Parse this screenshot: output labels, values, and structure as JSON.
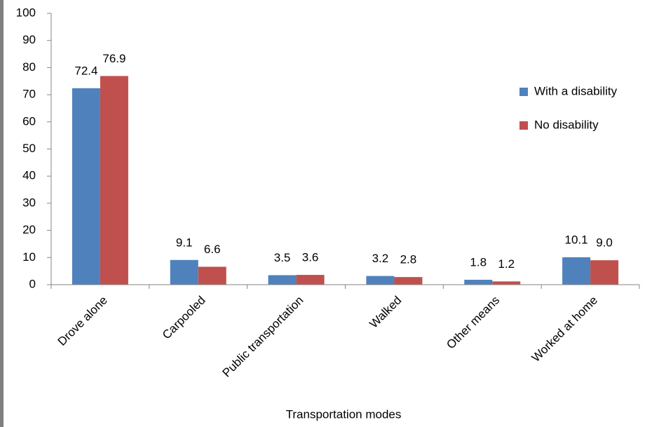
{
  "chart_data": {
    "type": "bar",
    "x_label": "Transportation modes",
    "categories": [
      "Drove alone",
      "Carpooled",
      "Public transportation",
      "Walked",
      "Other means",
      "Worked at home"
    ],
    "series": [
      {
        "name": "With a disability",
        "color": "#4f81bd",
        "values": [
          72.4,
          9.1,
          3.5,
          3.2,
          1.8,
          10.1
        ],
        "value_labels": [
          "72.4",
          "9.1",
          "3.5",
          "3.2",
          "1.8",
          "10.1"
        ]
      },
      {
        "name": "No disability",
        "color": "#c0504d",
        "values": [
          76.9,
          6.6,
          3.6,
          2.8,
          1.2,
          9.0
        ],
        "value_labels": [
          "76.9",
          "6.6",
          "3.6",
          "2.8",
          "1.2",
          "9.0"
        ]
      }
    ],
    "ylim": [
      0,
      100
    ],
    "yticks": [
      0,
      10,
      20,
      30,
      40,
      50,
      60,
      70,
      80,
      90,
      100
    ],
    "grid": false,
    "legend": "right"
  }
}
